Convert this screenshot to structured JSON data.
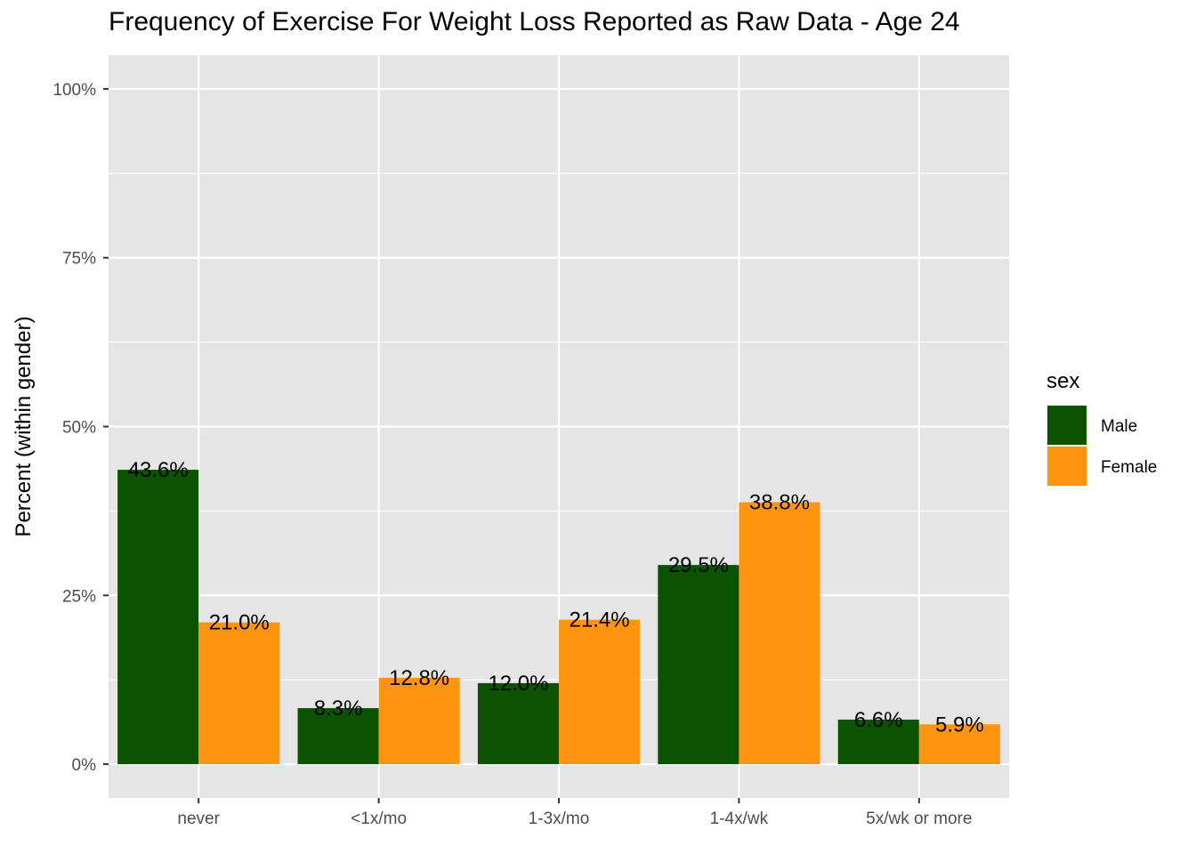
{
  "chart_data": {
    "type": "bar",
    "title": "Frequency of Exercise For Weight Loss Reported as Raw Data - Age 24",
    "xlabel": "",
    "ylabel": "Percent (within gender)",
    "ylim": [
      -0.05,
      1.05
    ],
    "y_ticks": [
      0,
      0.25,
      0.5,
      0.75,
      1.0
    ],
    "y_tick_labels": [
      "0%",
      "25%",
      "50%",
      "75%",
      "100%"
    ],
    "categories": [
      "never",
      "<1x/mo",
      "1-3x/mo",
      "1-4x/wk",
      "5x/wk or more"
    ],
    "legend_title": "sex",
    "legend_position": "right",
    "grid": true,
    "series": [
      {
        "name": "Male",
        "color": "#0b5300",
        "values": [
          0.436,
          0.083,
          0.12,
          0.295,
          0.066
        ],
        "labels": [
          "43.6%",
          "8.3%",
          "12.0%",
          "29.5%",
          "6.6%"
        ]
      },
      {
        "name": "Female",
        "color": "#ff940e",
        "values": [
          0.21,
          0.128,
          0.214,
          0.388,
          0.059
        ],
        "labels": [
          "21.0%",
          "12.8%",
          "21.4%",
          "38.8%",
          "5.9%"
        ]
      }
    ],
    "panel_background": "#e5e5e5",
    "grid_color": "#ffffff"
  }
}
